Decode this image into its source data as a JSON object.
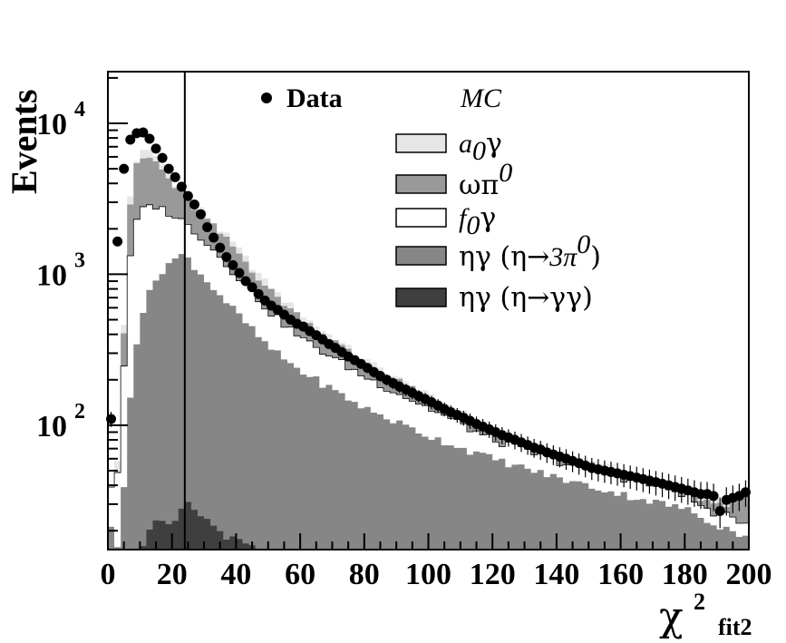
{
  "chart_data": {
    "type": "histogram",
    "y_axis": {
      "title": "Events",
      "scale": "log",
      "range": [
        15,
        22000
      ],
      "major_ticks": [
        {
          "value": 100,
          "base": "10",
          "exp": "2"
        },
        {
          "value": 1000,
          "base": "10",
          "exp": "3"
        },
        {
          "value": 10000,
          "base": "10",
          "exp": "4"
        }
      ]
    },
    "x_axis": {
      "title_main": "χ",
      "title_sup": "2",
      "title_sub": "fit2",
      "range": [
        0,
        200
      ],
      "tick_labels": [
        "0",
        "20",
        "40",
        "60",
        "80",
        "100",
        "120",
        "140",
        "160",
        "180",
        "200"
      ],
      "tick_values": [
        0,
        20,
        40,
        60,
        80,
        100,
        120,
        140,
        160,
        180,
        200
      ]
    },
    "cut_line_x": 24,
    "bin_width": 2,
    "legend": {
      "data_label": "Data",
      "mc_header": "MC",
      "entries": [
        {
          "key": "a0g",
          "main": "a",
          "sub": "0",
          "tail": "γ",
          "color": "#e6e6e6"
        },
        {
          "key": "omegapi",
          "main": "ωπ",
          "sup": "0",
          "color": "#999999"
        },
        {
          "key": "f0g",
          "main": "f",
          "sub": "0",
          "tail": "γ",
          "color": "#ffffff"
        },
        {
          "key": "eta3pi",
          "main": "ηγ (η",
          "arrow": "→",
          "tail": "3π",
          "sup": "0",
          "close": ")",
          "color": "#868686"
        },
        {
          "key": "etagg",
          "main": "ηγ (η",
          "arrow": "→",
          "tail": "γγ)",
          "color": "#3f3f3f"
        }
      ]
    },
    "colors": {
      "a0g": "#e6e6e6",
      "omegapi": "#999999",
      "f0g": "#ffffff",
      "eta3pi": "#868686",
      "etagg": "#3f3f3f",
      "data": "#000000"
    },
    "series": [
      {
        "name": "ηγ (η→γγ)",
        "key": "etagg",
        "anchors_x": [
          0,
          8,
          10,
          12,
          14,
          18,
          20,
          22,
          24,
          26,
          28,
          30,
          32,
          34,
          36,
          40,
          44,
          46,
          48,
          50,
          52
        ],
        "anchors_y": [
          0,
          0,
          15,
          18,
          22,
          23,
          19,
          26,
          30,
          29,
          26,
          25,
          22,
          21,
          19,
          17,
          16,
          15,
          14,
          13,
          0
        ]
      },
      {
        "name": "ηγ (η→3π0)",
        "key": "eta3pi",
        "anchors_x": [
          0,
          1,
          2,
          4,
          6,
          8,
          10,
          14,
          18,
          22,
          24,
          26,
          30,
          40,
          50,
          60,
          80,
          100,
          120,
          140,
          160,
          180,
          190,
          200
        ],
        "anchors_y": [
          30,
          22,
          15,
          15,
          100,
          260,
          500,
          850,
          1150,
          1300,
          1350,
          1200,
          950,
          560,
          330,
          230,
          130,
          85,
          60,
          45,
          35,
          28,
          22,
          18
        ]
      },
      {
        "name": "f0γ",
        "key": "f0g",
        "anchors_x": [
          0,
          1,
          2,
          4,
          6,
          8,
          10,
          14,
          20,
          24,
          30,
          40,
          50,
          60,
          80,
          100,
          120,
          140,
          160,
          170,
          180,
          186,
          190,
          196,
          200
        ],
        "anchors_y": [
          60,
          40,
          30,
          80,
          800,
          2000,
          2600,
          2900,
          2500,
          2200,
          1700,
          1000,
          580,
          380,
          210,
          130,
          80,
          58,
          45,
          40,
          35,
          28,
          26,
          24,
          22
        ]
      },
      {
        "name": "ωπ0",
        "key": "omegapi",
        "anchors_x": [
          0,
          1,
          2,
          4,
          6,
          8,
          10,
          14,
          18,
          20,
          24,
          30,
          40,
          50,
          60,
          80,
          100,
          120,
          140,
          160,
          170,
          180,
          186,
          190,
          196,
          200
        ],
        "anchors_y": [
          60,
          40,
          30,
          90,
          1900,
          4600,
          5800,
          5900,
          4600,
          4000,
          3200,
          2400,
          1450,
          800,
          520,
          260,
          150,
          90,
          63,
          48,
          42,
          38,
          32,
          30,
          31,
          32
        ]
      },
      {
        "name": "a0γ",
        "key": "a0g",
        "anchors_x": [
          0,
          1,
          2,
          4,
          6,
          8,
          10,
          14,
          18,
          20,
          24,
          30,
          40,
          50,
          60,
          80,
          100,
          120,
          140,
          160,
          170,
          180,
          186,
          190,
          196,
          200
        ],
        "anchors_y": [
          62,
          42,
          32,
          100,
          2100,
          5200,
          6400,
          6500,
          5000,
          4300,
          3400,
          2550,
          1530,
          840,
          545,
          272,
          157,
          95,
          66,
          50,
          44,
          40,
          34,
          31,
          32,
          33
        ]
      }
    ],
    "data_points": {
      "name": "Data",
      "x": [
        1,
        3,
        5,
        7,
        9,
        11,
        13,
        15,
        17,
        19,
        21,
        23,
        25,
        27,
        29,
        31,
        33,
        35,
        37,
        39,
        41,
        43,
        45,
        47,
        49,
        51,
        53,
        55,
        57,
        59,
        61,
        63,
        65,
        67,
        69,
        71,
        73,
        75,
        77,
        79,
        81,
        83,
        85,
        87,
        89,
        91,
        93,
        95,
        97,
        99,
        101,
        103,
        105,
        107,
        109,
        111,
        113,
        115,
        117,
        119,
        121,
        123,
        125,
        127,
        129,
        131,
        133,
        135,
        137,
        139,
        141,
        143,
        145,
        147,
        149,
        151,
        153,
        155,
        157,
        159,
        161,
        163,
        165,
        167,
        169,
        171,
        173,
        175,
        177,
        179,
        181,
        183,
        185,
        187,
        189,
        191,
        193,
        195,
        197,
        199
      ],
      "y": [
        110,
        1650,
        5000,
        7800,
        8600,
        8700,
        7900,
        6800,
        5900,
        5000,
        4400,
        3800,
        3300,
        2900,
        2500,
        2050,
        1750,
        1500,
        1300,
        1150,
        1020,
        900,
        820,
        740,
        670,
        620,
        580,
        540,
        500,
        470,
        450,
        420,
        395,
        370,
        345,
        325,
        305,
        285,
        270,
        255,
        240,
        225,
        212,
        200,
        190,
        180,
        172,
        164,
        156,
        149,
        142,
        135,
        128,
        122,
        117,
        112,
        107,
        102,
        98,
        94,
        90,
        86,
        83,
        80,
        77,
        74,
        71,
        69,
        66,
        64,
        62,
        60,
        58,
        56,
        54,
        52,
        51,
        50,
        49,
        48,
        47,
        46,
        45,
        44,
        43,
        42,
        41,
        40,
        39,
        38,
        37,
        36,
        35,
        35,
        34,
        27,
        32,
        33,
        34,
        36
      ]
    }
  }
}
